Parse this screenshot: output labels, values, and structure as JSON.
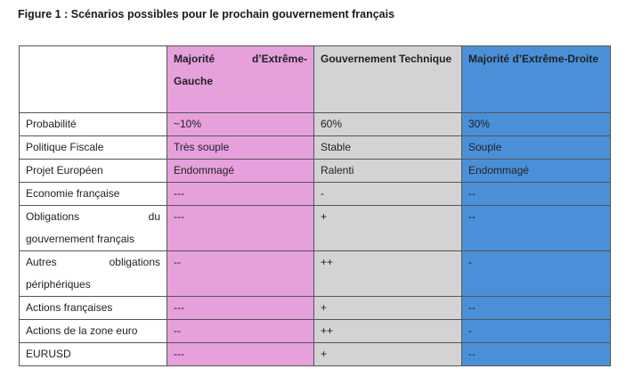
{
  "caption": "Figure 1 : Scénarios possibles pour le prochain gouvernement français",
  "colors": {
    "left": "#e6a0dc",
    "middle": "#d3d3d3",
    "right": "#4a90d9"
  },
  "headers": [
    "",
    "Majorité d’Extrême-Gauche",
    "Gouvernement Technique",
    "Majorité d’Extrême-Droite"
  ],
  "rows": [
    {
      "label": "Probabilité",
      "left": "~10%",
      "middle": "60%",
      "right": "30%"
    },
    {
      "label": "Politique Fiscale",
      "left": "Très souple",
      "middle": "Stable",
      "right": "Souple"
    },
    {
      "label": "Projet Européen",
      "left": "Endommagé",
      "middle": "Ralenti",
      "right": "Endommagé"
    },
    {
      "label": "Economie française",
      "left": "---",
      "middle": "-",
      "right": "--"
    },
    {
      "label": "Obligations du gouvernement français",
      "left": "---",
      "middle": "+",
      "right": "--"
    },
    {
      "label": "Autres obligations périphériques",
      "left": "--",
      "middle": "++",
      "right": "-"
    },
    {
      "label": "Actions françaises",
      "left": "---",
      "middle": "+",
      "right": "--"
    },
    {
      "label": "Actions de la zone euro",
      "left": "--",
      "middle": "++",
      "right": "-"
    },
    {
      "label": "EURUSD",
      "left": "---",
      "middle": "+",
      "right": "--"
    }
  ]
}
